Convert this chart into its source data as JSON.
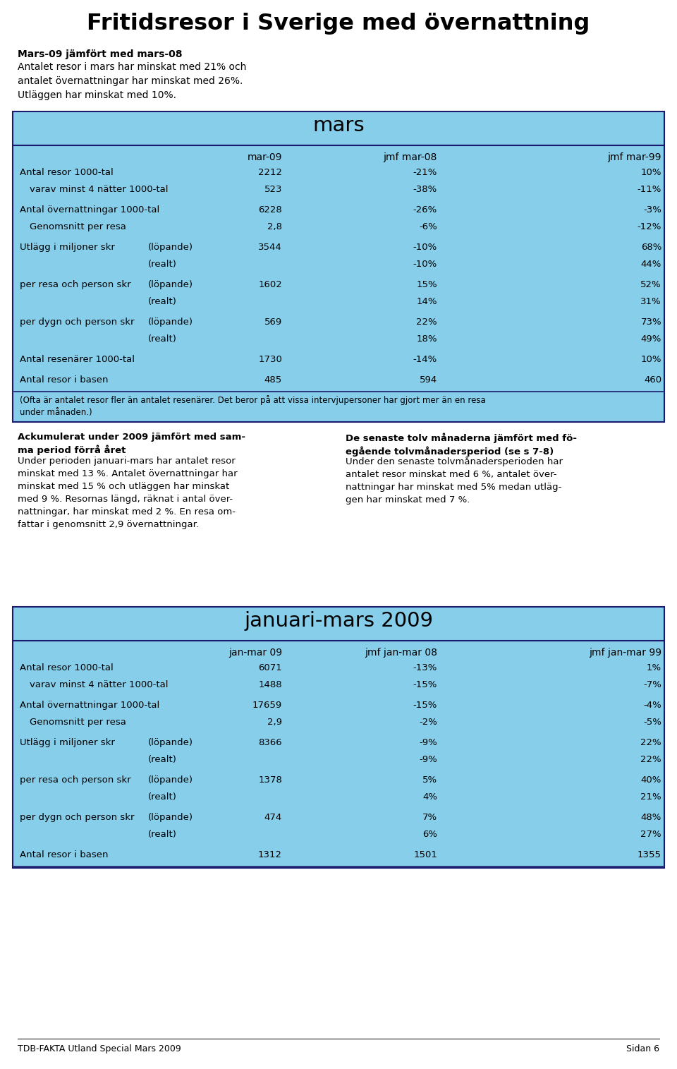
{
  "title": "Fritidsresor i Sverige med övernattning",
  "subtitle_bold": "Mars-09 jämfört med mars-08",
  "subtitle_text": "Antalet resor i mars har minskat med 21% och\nantalet övernattningar har minskat med 26%.\nUtläggen har minskat med 10%.",
  "mars_header": "mars",
  "mars_col_headers": [
    "mar-09",
    "jmf mar-08",
    "jmf mar-99"
  ],
  "mars_rows": [
    {
      "label": "Antal resor 1000-tal",
      "sub": "",
      "c1": "2212",
      "c2": "-21%",
      "c3": "10%",
      "indent": false
    },
    {
      "label": "varav minst 4 nätter 1000-tal",
      "sub": "",
      "c1": "523",
      "c2": "-38%",
      "c3": "-11%",
      "indent": true
    },
    {
      "label": "Antal övernattningar 1000-tal",
      "sub": "",
      "c1": "6228",
      "c2": "-26%",
      "c3": "-3%",
      "indent": false
    },
    {
      "label": "Genomsnitt per resa",
      "sub": "",
      "c1": "2,8",
      "c2": "-6%",
      "c3": "-12%",
      "indent": true
    },
    {
      "label": "Utlägg i miljoner skr",
      "sub": "(löpande)",
      "c1": "3544",
      "c2": "-10%",
      "c3": "68%",
      "indent": false
    },
    {
      "label": "",
      "sub": "(realt)",
      "c1": "",
      "c2": "-10%",
      "c3": "44%",
      "indent": false
    },
    {
      "label": "per resa och person skr",
      "sub": "(löpande)",
      "c1": "1602",
      "c2": "15%",
      "c3": "52%",
      "indent": false
    },
    {
      "label": "",
      "sub": "(realt)",
      "c1": "",
      "c2": "14%",
      "c3": "31%",
      "indent": false
    },
    {
      "label": "per dygn och person skr",
      "sub": "(löpande)",
      "c1": "569",
      "c2": "22%",
      "c3": "73%",
      "indent": false
    },
    {
      "label": "",
      "sub": "(realt)",
      "c1": "",
      "c2": "18%",
      "c3": "49%",
      "indent": false
    },
    {
      "label": "Antal resenärer 1000-tal",
      "sub": "",
      "c1": "1730",
      "c2": "-14%",
      "c3": "10%",
      "indent": false
    },
    {
      "label": "Antal resor i basen",
      "sub": "",
      "c1": "485",
      "c2": "594",
      "c3": "460",
      "indent": false
    }
  ],
  "mars_footnote": "(Ofta är antalet resor fler än antalet resenärer. Det beror på att vissa intervjupersoner har gjort mer än en resa\nunder månaden.)",
  "left_text_bold": "Ackumulerat under 2009 jämfört med sam-\nma period förrå året",
  "left_text": "Under perioden januari-mars har antalet resor\nminskat med 13 %. Antalet övernattningar har\nminskat med 15 % och utläggen har minskat\nmed 9 %. Resornas längd, räknat i antal över-\nnattningar, har minskat med 2 %. En resa om-\nfattar i genomsnitt 2,9 övernattningar.",
  "right_text_bold": "De senaste tolv månaderna jämfört med fö-\negående tolvmånadersperiod (se s 7-8)",
  "right_text": "Under den senaste tolvmånadersperioden har\nantalet resor minskat med 6 %, antalet över-\nnattningar har minskat med 5% medan utläg-\ngen har minskat med 7 %.",
  "jan_header": "januari-mars 2009",
  "jan_col_headers": [
    "jan-mar 09",
    "jmf jan-mar 08",
    "jmf jan-mar 99"
  ],
  "jan_rows": [
    {
      "label": "Antal resor 1000-tal",
      "sub": "",
      "c1": "6071",
      "c2": "-13%",
      "c3": "1%",
      "indent": false
    },
    {
      "label": "varav minst 4 nätter 1000-tal",
      "sub": "",
      "c1": "1488",
      "c2": "-15%",
      "c3": "-7%",
      "indent": true
    },
    {
      "label": "Antal övernattningar 1000-tal",
      "sub": "",
      "c1": "17659",
      "c2": "-15%",
      "c3": "-4%",
      "indent": false
    },
    {
      "label": "Genomsnitt per resa",
      "sub": "",
      "c1": "2,9",
      "c2": "-2%",
      "c3": "-5%",
      "indent": true
    },
    {
      "label": "Utlägg i miljoner skr",
      "sub": "(löpande)",
      "c1": "8366",
      "c2": "-9%",
      "c3": "22%",
      "indent": false
    },
    {
      "label": "",
      "sub": "(realt)",
      "c1": "",
      "c2": "-9%",
      "c3": "22%",
      "indent": false
    },
    {
      "label": "per resa och person skr",
      "sub": "(löpande)",
      "c1": "1378",
      "c2": "5%",
      "c3": "40%",
      "indent": false
    },
    {
      "label": "",
      "sub": "(realt)",
      "c1": "",
      "c2": "4%",
      "c3": "21%",
      "indent": false
    },
    {
      "label": "per dygn och person skr",
      "sub": "(löpande)",
      "c1": "474",
      "c2": "7%",
      "c3": "48%",
      "indent": false
    },
    {
      "label": "",
      "sub": "(realt)",
      "c1": "",
      "c2": "6%",
      "c3": "27%",
      "indent": false
    },
    {
      "label": "Antal resor i basen",
      "sub": "",
      "c1": "1312",
      "c2": "1501",
      "c3": "1355",
      "indent": false
    }
  ],
  "footer_left": "TDB-FAKTA Utland Special Mars 2009",
  "footer_right": "Sidan 6",
  "bg_color": "#87CEEB",
  "white_bg": "#FFFFFF",
  "header_line_color": "#1a1a6e"
}
